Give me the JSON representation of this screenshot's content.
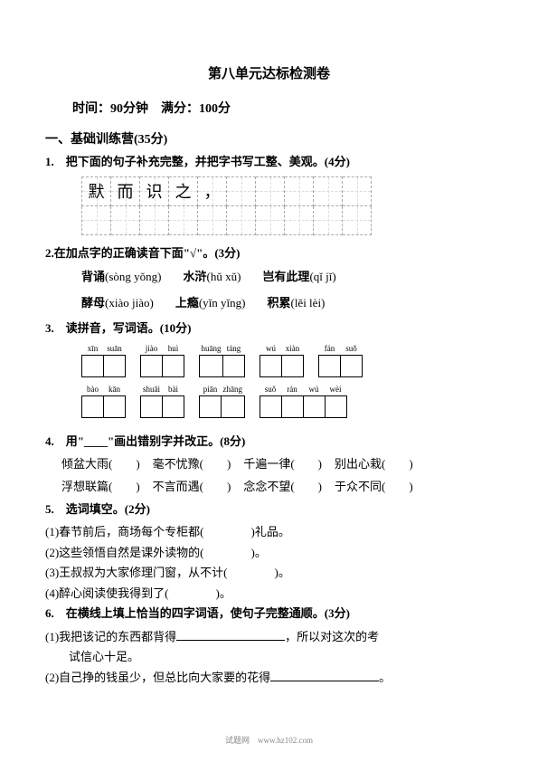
{
  "title": "第八单元达标检测卷",
  "subtitle": "时间：90分钟　满分：100分",
  "section1": {
    "header": "一、基础训练营(35分)",
    "q1": {
      "text": "1.　把下面的句子补充完整，并把字书写工整、美观。(4分)",
      "grid_chars": [
        "默",
        "而",
        "识",
        "之",
        "，",
        "",
        "",
        "",
        "",
        ""
      ]
    },
    "q2": {
      "text": "2.在加点字的正确读音下面\"√\"。(3分)",
      "row1": [
        {
          "word": "背诵",
          "pinyin": "(sòng yǒng)"
        },
        {
          "word": "水浒",
          "pinyin": "(hǔ xǔ)"
        },
        {
          "word": "岂有此理",
          "pinyin": "(qǐ jǐ)"
        }
      ],
      "row2": [
        {
          "word": "酵母",
          "pinyin": "(xiào jiào)"
        },
        {
          "word": "上瘾",
          "pinyin": "(yǐn yǐng)"
        },
        {
          "word": "积累",
          "pinyin": "(lěi lèi)"
        }
      ]
    },
    "q3": {
      "text": "3.　读拼音，写词语。(10分)",
      "tables": [
        [
          [
            "xīn",
            "suān"
          ],
          [
            "jiào",
            "huì"
          ],
          [
            "huāng",
            "táng"
          ],
          [
            "wú",
            "xiàn"
          ],
          [
            "fán",
            "suǒ"
          ]
        ],
        [
          [
            "bào",
            "kān"
          ],
          [
            "shuāi",
            "bài"
          ],
          [
            "piān",
            "zhāng"
          ],
          [
            "suǒ",
            "rán",
            "wú",
            "wèi"
          ]
        ]
      ]
    },
    "q4": {
      "text": "4.　用\"____\"画出错别字并改正。(8分)",
      "items": [
        [
          "倾盆大雨(　　)",
          "毫不忧豫(　　)",
          "千遍一律(　　)",
          "别出心栽(　　)"
        ],
        [
          "浮想联篇(　　)",
          "不言而遇(　　)",
          "念念不望(　　)",
          "于众不同(　　)"
        ]
      ]
    },
    "q5": {
      "text": "5.　选词填空。(2分)",
      "items": [
        "(1)春节前后，商场每个专柜都(　　　　)礼品。",
        "(2)这些领悟自然是课外读物的(　　　　)。",
        "(3)王叔叔为大家修理门窗，从不计(　　　　)。",
        "(4)醉心阅读使我得到了(　　　　)。"
      ]
    },
    "q6": {
      "text": "6.　在横线上填上恰当的四字词语，使句子完整通顺。(3分)",
      "items": [
        {
          "pre": "(1)我把该记的东西都背得",
          "post": "，所以对这次的考"
        },
        {
          "pre": "　　试信心十足。",
          "post": ""
        },
        {
          "pre": "(2)自己挣的钱虽少，但总比向大家要的花得",
          "post": "。"
        }
      ]
    }
  },
  "footer": "试题网　www.hz102.com"
}
